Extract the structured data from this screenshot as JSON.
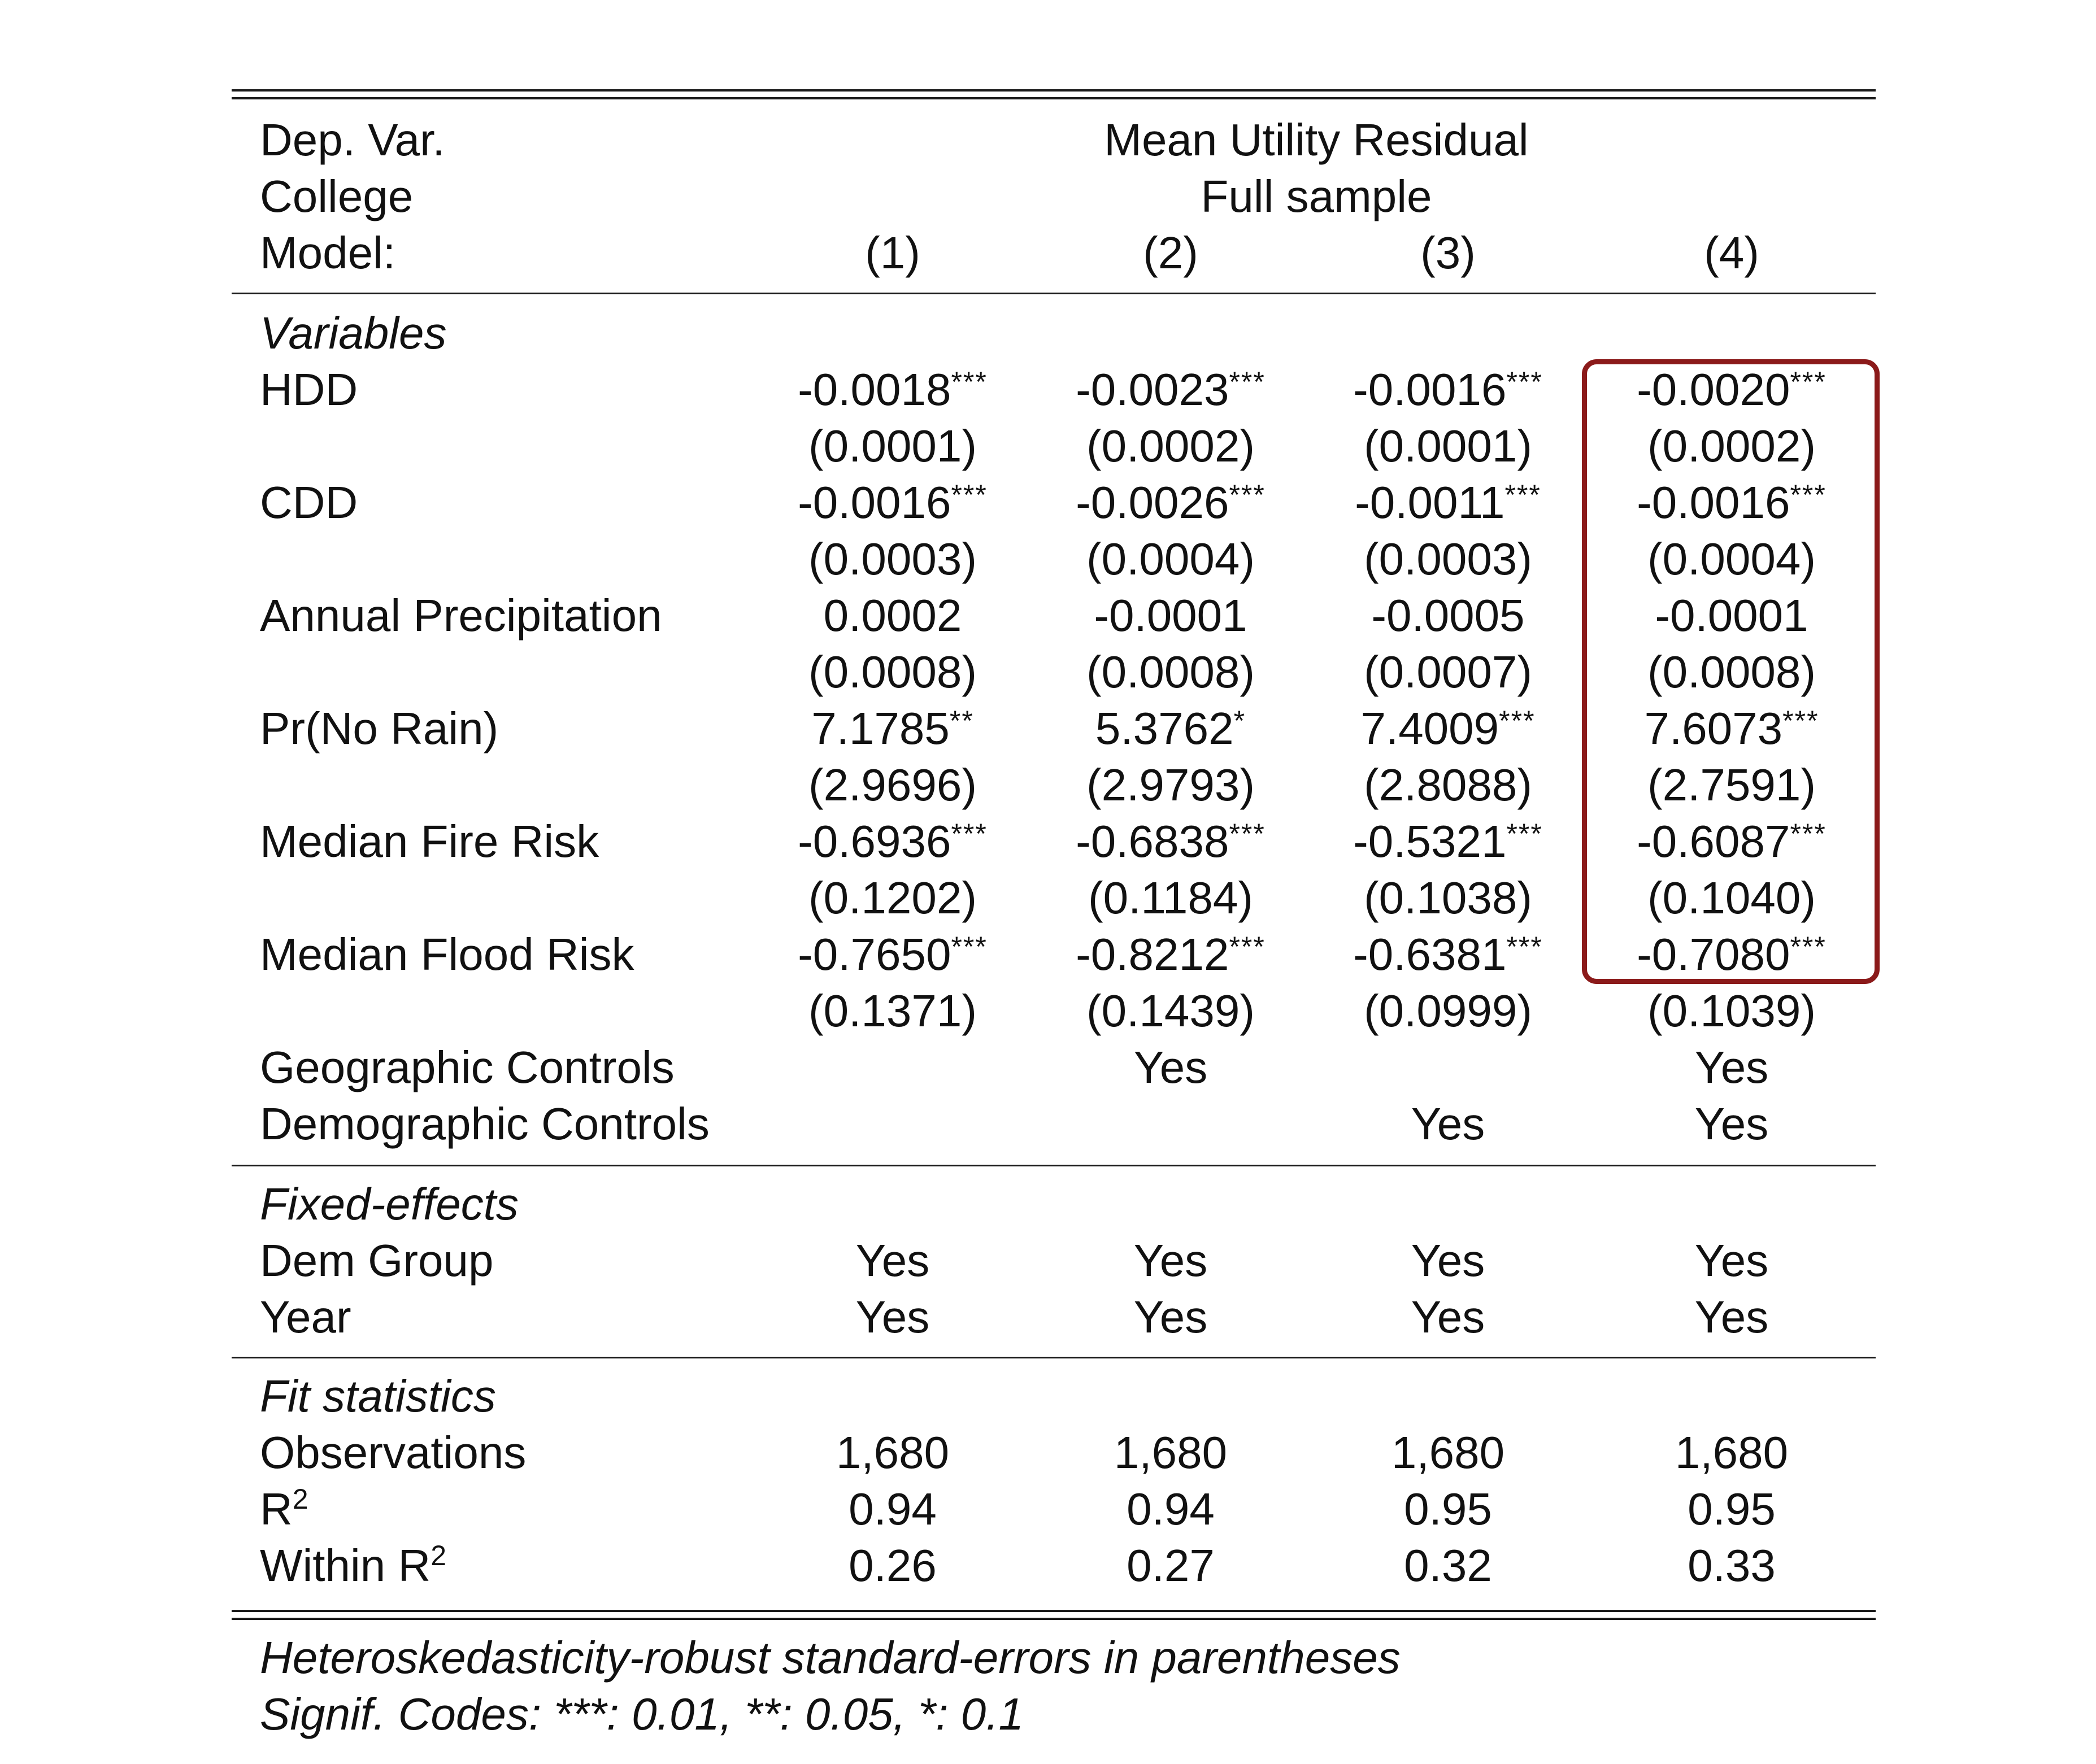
{
  "header": {
    "dep_var_label": "Dep. Var.",
    "dep_var_value": "Mean Utility Residual",
    "college_label": "College",
    "college_value": "Full sample",
    "model_label": "Model:",
    "models": [
      "(1)",
      "(2)",
      "(3)",
      "(4)"
    ]
  },
  "variables": {
    "section_title": "Variables",
    "rows": [
      {
        "name": "HDD",
        "coef": [
          {
            "v": "-0.0018",
            "s": "***"
          },
          {
            "v": "-0.0023",
            "s": "***"
          },
          {
            "v": "-0.0016",
            "s": "***"
          },
          {
            "v": "-0.0020",
            "s": "***"
          }
        ],
        "se": [
          "(0.0001)",
          "(0.0002)",
          "(0.0001)",
          "(0.0002)"
        ]
      },
      {
        "name": "CDD",
        "coef": [
          {
            "v": "-0.0016",
            "s": "***"
          },
          {
            "v": "-0.0026",
            "s": "***"
          },
          {
            "v": "-0.0011",
            "s": "***"
          },
          {
            "v": "-0.0016",
            "s": "***"
          }
        ],
        "se": [
          "(0.0003)",
          "(0.0004)",
          "(0.0003)",
          "(0.0004)"
        ]
      },
      {
        "name": "Annual Precipitation",
        "coef": [
          {
            "v": "0.0002",
            "s": ""
          },
          {
            "v": "-0.0001",
            "s": ""
          },
          {
            "v": "-0.0005",
            "s": ""
          },
          {
            "v": "-0.0001",
            "s": ""
          }
        ],
        "se": [
          "(0.0008)",
          "(0.0008)",
          "(0.0007)",
          "(0.0008)"
        ]
      },
      {
        "name": "Pr(No Rain)",
        "coef": [
          {
            "v": "7.1785",
            "s": "**"
          },
          {
            "v": "5.3762",
            "s": "*"
          },
          {
            "v": "7.4009",
            "s": "***"
          },
          {
            "v": "7.6073",
            "s": "***"
          }
        ],
        "se": [
          "(2.9696)",
          "(2.9793)",
          "(2.8088)",
          "(2.7591)"
        ]
      },
      {
        "name": "Median Fire Risk",
        "coef": [
          {
            "v": "-0.6936",
            "s": "***"
          },
          {
            "v": "-0.6838",
            "s": "***"
          },
          {
            "v": "-0.5321",
            "s": "***"
          },
          {
            "v": "-0.6087",
            "s": "***"
          }
        ],
        "se": [
          "(0.1202)",
          "(0.1184)",
          "(0.1038)",
          "(0.1040)"
        ]
      },
      {
        "name": "Median Flood Risk",
        "coef": [
          {
            "v": "-0.7650",
            "s": "***"
          },
          {
            "v": "-0.8212",
            "s": "***"
          },
          {
            "v": "-0.6381",
            "s": "***"
          },
          {
            "v": "-0.7080",
            "s": "***"
          }
        ],
        "se": [
          "(0.1371)",
          "(0.1439)",
          "(0.0999)",
          "(0.1039)"
        ]
      }
    ],
    "controls": [
      {
        "name": "Geographic Controls",
        "vals": [
          "",
          "Yes",
          "",
          "Yes"
        ]
      },
      {
        "name": "Demographic Controls",
        "vals": [
          "",
          "",
          "Yes",
          "Yes"
        ]
      }
    ]
  },
  "fixed_effects": {
    "section_title": "Fixed-effects",
    "rows": [
      {
        "name": "Dem Group",
        "vals": [
          "Yes",
          "Yes",
          "Yes",
          "Yes"
        ]
      },
      {
        "name": "Year",
        "vals": [
          "Yes",
          "Yes",
          "Yes",
          "Yes"
        ]
      }
    ]
  },
  "fit": {
    "section_title": "Fit statistics",
    "observations": {
      "name": "Observations",
      "vals": [
        "1,680",
        "1,680",
        "1,680",
        "1,680"
      ]
    },
    "r2": {
      "name": "R",
      "sup": "2",
      "vals": [
        "0.94",
        "0.94",
        "0.95",
        "0.95"
      ]
    },
    "within_r2": {
      "name": "Within R",
      "sup": "2",
      "vals": [
        "0.26",
        "0.27",
        "0.32",
        "0.33"
      ]
    }
  },
  "notes": {
    "line1": "Heteroskedasticity-robust standard-errors in parentheses",
    "line2": "Signif. Codes: ***: 0.01, **: 0.05, *: 0.1"
  },
  "highlight": {
    "column": "(4)",
    "color": "#8b1a1a"
  }
}
